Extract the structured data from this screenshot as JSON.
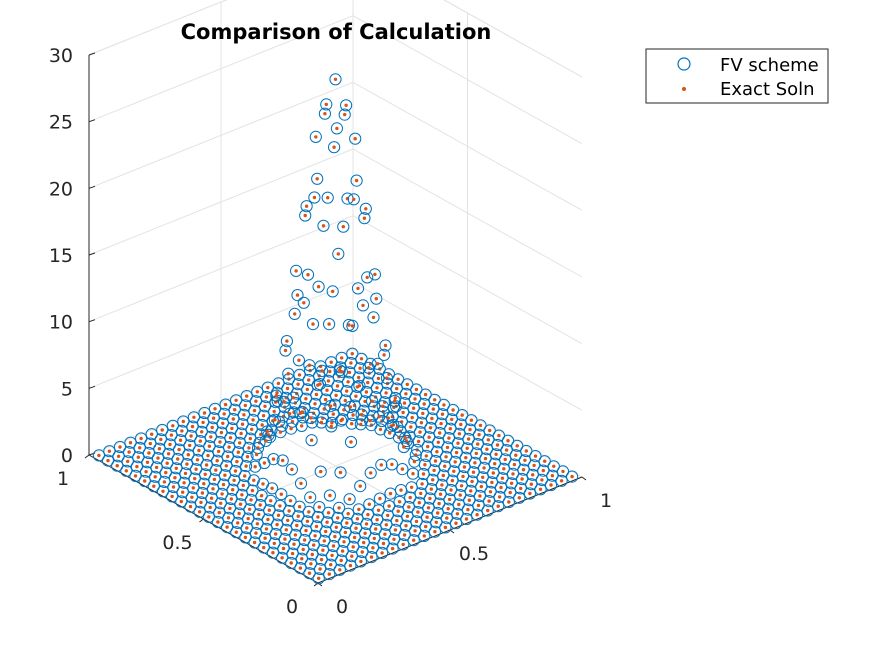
{
  "chart_data": {
    "type": "scatter3d",
    "title": "Comparison of Calculation",
    "xlabel": "",
    "ylabel": "",
    "zlabel": "",
    "xlim": [
      0,
      1
    ],
    "ylim": [
      0,
      1
    ],
    "zlim": [
      0,
      30
    ],
    "xticks": [
      "0",
      "0.5",
      "1"
    ],
    "yticks": [
      "0",
      "0.5",
      "1"
    ],
    "zticks": [
      "0",
      "5",
      "10",
      "15",
      "20",
      "25",
      "30"
    ],
    "grid": true,
    "legend_position": "top-right",
    "series": [
      {
        "name": "FV scheme",
        "marker": "open-circle",
        "color": "#0072BD"
      },
      {
        "name": "Exact Soln",
        "marker": "dot",
        "color": "#D95319"
      }
    ],
    "grid_resolution": 25,
    "surface": {
      "peak_value": 29,
      "peak_center": [
        0.5,
        0.5
      ],
      "description_values": [
        {
          "x": 0.5,
          "y": 0.5,
          "z": 29
        },
        {
          "x": 0.5,
          "y": 0.45,
          "z": 24
        },
        {
          "x": 0.5,
          "y": 0.4,
          "z": 14
        },
        {
          "x": 0.5,
          "y": 0.35,
          "z": 5
        },
        {
          "x": 0.5,
          "y": 0.3,
          "z": 1
        },
        {
          "x": 0.5,
          "y": 0.25,
          "z": 0
        }
      ]
    }
  }
}
